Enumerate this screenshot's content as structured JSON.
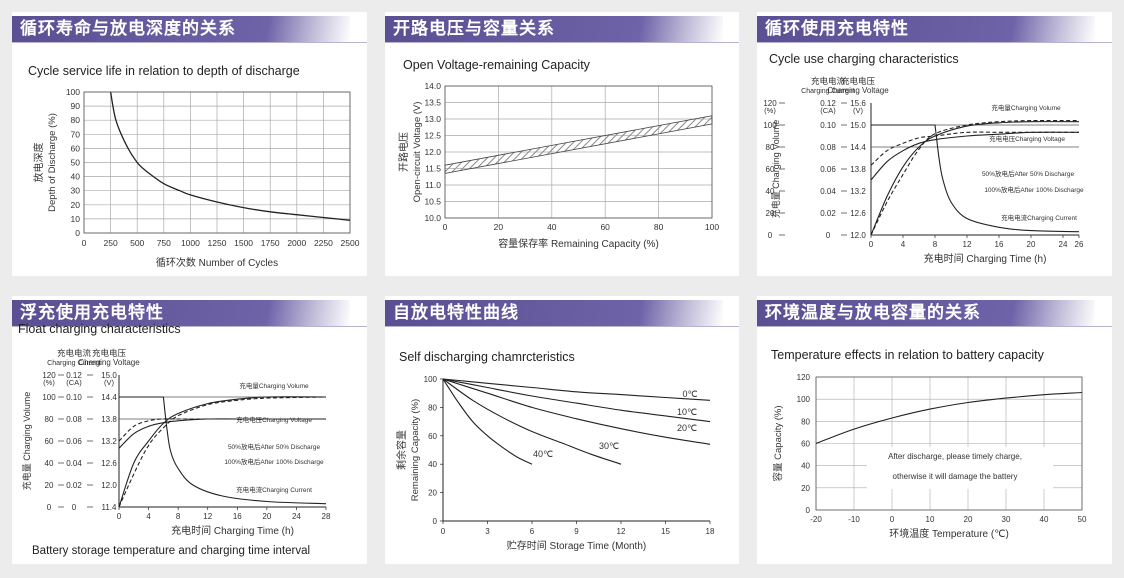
{
  "panels": [
    {
      "title": "循环寿命与放电深度的关系"
    },
    {
      "title": "开路电压与容量关系"
    },
    {
      "title": "循环使用充电特性"
    },
    {
      "title": "浮充使用充电特性"
    },
    {
      "title": "自放电特性曲线"
    },
    {
      "title": "环境温度与放电容量的关系"
    }
  ],
  "chart_data": [
    {
      "type": "line",
      "title": "Cycle service life in relation to depth of discharge",
      "ylabel_cn": "放电深度",
      "ylabel_en": "Depth of Discharge (%)",
      "xlabel": "循环次数 Number of Cycles",
      "xlim": [
        0,
        2500
      ],
      "ylim": [
        0,
        100
      ],
      "xticks": [
        "0",
        "250",
        "500",
        "750",
        "1000",
        "1250",
        "1500",
        "1750",
        "2000",
        "2250",
        "2500"
      ],
      "yticks": [
        "0",
        "10",
        "20",
        "30",
        "40",
        "50",
        "60",
        "70",
        "80",
        "90",
        "100"
      ],
      "grid": true,
      "x": [
        250,
        300,
        400,
        500,
        600,
        750,
        900,
        1000,
        1250,
        1500,
        1750,
        2000,
        2250,
        2500
      ],
      "y": [
        100,
        80,
        62,
        50,
        43,
        35,
        30,
        27,
        22,
        18,
        15,
        13,
        11,
        9
      ]
    },
    {
      "type": "area",
      "title": "Open Voltage-remaining Capacity",
      "ylabel_cn": "开路电压",
      "ylabel_en": "Open-circuit Voltage (V)",
      "xlabel": "容量保存率 Remaining Capacity (%)",
      "xlim": [
        0,
        100
      ],
      "ylim": [
        10.0,
        14.0
      ],
      "xticks": [
        "0",
        "20",
        "40",
        "60",
        "80",
        "100"
      ],
      "yticks": [
        "10.0",
        "10.5",
        "11.0",
        "11.5",
        "12.0",
        "12.5",
        "13.0",
        "13.5",
        "14.0"
      ],
      "grid": true,
      "x": [
        0,
        100
      ],
      "upper": [
        11.6,
        13.1
      ],
      "lower": [
        11.35,
        12.85
      ]
    },
    {
      "type": "line",
      "title": "Cycle use charging characteristics",
      "axis1_cn": "充电电流",
      "axis1_en": "Charging Current",
      "axis2_cn": "充电电压",
      "axis2_en": "Charging Voltage",
      "axis0_ticks": [
        "120",
        "100",
        "80",
        "60",
        "40",
        "20",
        "0"
      ],
      "axis0_unit": "(%)",
      "axis1_ticks": [
        "0.12",
        "0.10",
        "0.08",
        "0.06",
        "0.04",
        "0.02",
        "0"
      ],
      "axis1_unit": "(CA)",
      "axis2_ticks": [
        "15.6",
        "15.0",
        "14.4",
        "13.8",
        "13.2",
        "12.6",
        "12.0"
      ],
      "axis2_unit": "(V)",
      "ylabel_cn": "充电量",
      "ylabel_en": "Charging Volume",
      "xlabel": "充电时间 Charging Time (h)",
      "xticks": [
        "0",
        "4",
        "8",
        "12",
        "16",
        "20",
        "24",
        "26"
      ],
      "series": [
        {
          "name": "充电量Charging Volume",
          "style": "solid",
          "x": [
            0,
            2,
            4,
            6,
            8,
            12,
            16,
            20,
            26
          ],
          "y": [
            0,
            35,
            62,
            80,
            90,
            99,
            102,
            103,
            103
          ]
        },
        {
          "name": "充电电压Charging Voltage",
          "style": "solid",
          "x": [
            0,
            2,
            4,
            6,
            8,
            12,
            16,
            20,
            26
          ],
          "y": [
            13.5,
            14.0,
            14.3,
            14.5,
            14.6,
            14.7,
            14.75,
            14.8,
            14.8
          ]
        },
        {
          "name": "50%放电后After 50% Discharge",
          "style": "dashed",
          "x": [
            0,
            2,
            4,
            6,
            8,
            12,
            16,
            20,
            26
          ],
          "y": [
            13.9,
            14.3,
            14.5,
            14.65,
            14.7,
            14.8,
            14.8,
            14.8,
            14.8
          ]
        },
        {
          "name": "100%放电后After 100% Discharge",
          "style": "dashed",
          "x": [
            0,
            2,
            4,
            6,
            8,
            12,
            16,
            20,
            26
          ],
          "y": [
            0,
            30,
            55,
            78,
            92,
            100,
            103,
            104,
            104
          ]
        },
        {
          "name": "充电电流Charging Current",
          "style": "solid",
          "x": [
            0,
            8,
            8.5,
            9,
            10,
            12,
            16,
            20,
            26
          ],
          "y": [
            0.1,
            0.1,
            0.07,
            0.05,
            0.03,
            0.015,
            0.007,
            0.004,
            0.003
          ]
        }
      ],
      "labels": [
        "充电量Charging Volume",
        "充电电压Charging Voltage",
        "50%放电后After 50% Discharge",
        "100%放电后After 100% Discharge",
        "充电电流Charging Current"
      ]
    },
    {
      "type": "line",
      "title": "Float charging characteristics",
      "axis1_cn": "充电电流",
      "axis1_en": "Charging Current",
      "axis2_cn": "充电电压",
      "axis2_en": "Charging Voltage",
      "axis0_ticks": [
        "120",
        "100",
        "80",
        "60",
        "40",
        "20",
        "0"
      ],
      "axis0_unit": "(%)",
      "axis1_ticks": [
        "0.12",
        "0.10",
        "0.08",
        "0.06",
        "0.04",
        "0.02",
        "0"
      ],
      "axis1_unit": "(CA)",
      "axis2_ticks": [
        "15.0",
        "14.4",
        "13.8",
        "13.2",
        "12.6",
        "12.0",
        "11.4"
      ],
      "axis2_unit": "(V)",
      "ylabel_cn": "充电量",
      "ylabel_en": "Charging Volume",
      "xlabel": "充电时间 Charging Time (h)",
      "xticks": [
        "0",
        "4",
        "8",
        "12",
        "16",
        "20",
        "24",
        "28"
      ],
      "footer": "Battery storage temperature and charging time interval",
      "series": [
        {
          "name": "充电量Charging Volume",
          "style": "solid",
          "x": [
            0,
            2,
            4,
            6,
            8,
            12,
            16,
            20,
            28
          ],
          "y": [
            0,
            40,
            60,
            76,
            85,
            94,
            98,
            100,
            100
          ]
        },
        {
          "name": "充电电压Charging Voltage",
          "style": "solid",
          "x": [
            0,
            2,
            4,
            6,
            8,
            12,
            16,
            20,
            28
          ],
          "y": [
            13.0,
            13.4,
            13.6,
            13.7,
            13.75,
            13.8,
            13.8,
            13.8,
            13.8
          ]
        },
        {
          "name": "50%放电后After 50% Discharge",
          "style": "dashed",
          "x": [
            0,
            2,
            4,
            6,
            8,
            12,
            16,
            20,
            28
          ],
          "y": [
            13.2,
            13.6,
            13.75,
            13.8,
            13.8,
            13.8,
            13.8,
            13.8,
            13.8
          ]
        },
        {
          "name": "100%放电后After 100% Discharge",
          "style": "dashed",
          "x": [
            0,
            2,
            4,
            6,
            8,
            12,
            16,
            20,
            28
          ],
          "y": [
            0,
            30,
            56,
            72,
            83,
            93,
            97,
            99,
            100
          ]
        },
        {
          "name": "充电电流Charging Current",
          "style": "solid",
          "x": [
            0,
            6,
            6.5,
            7,
            8,
            10,
            14,
            20,
            28
          ],
          "y": [
            0.1,
            0.1,
            0.07,
            0.05,
            0.035,
            0.02,
            0.01,
            0.005,
            0.003
          ]
        }
      ],
      "labels": [
        "充电量Charging Volume",
        "充电电压Charging Voltage",
        "50%放电后After 50% Discharge",
        "100%放电后After 100% Discharge",
        "充电电流Charging Current"
      ]
    },
    {
      "type": "line",
      "title": "Self discharging chamrcteristics",
      "ylabel_cn": "剩余容量",
      "ylabel_en": "Remaining Capacity (%)",
      "xlabel": "贮存时间 Storage Time (Month)",
      "xlim": [
        0,
        18
      ],
      "ylim": [
        0,
        100
      ],
      "xticks": [
        "0",
        "3",
        "6",
        "9",
        "12",
        "15",
        "18"
      ],
      "yticks": [
        "0",
        "20",
        "40",
        "60",
        "80",
        "100"
      ],
      "series": [
        {
          "name": "0℃",
          "x": [
            0,
            3,
            6,
            9,
            12,
            15,
            18
          ],
          "y": [
            100,
            97,
            94,
            91,
            89,
            87,
            85
          ]
        },
        {
          "name": "10℃",
          "x": [
            0,
            3,
            6,
            9,
            12,
            15,
            18
          ],
          "y": [
            100,
            94,
            88,
            83,
            78,
            74,
            70
          ]
        },
        {
          "name": "20℃",
          "x": [
            0,
            3,
            6,
            9,
            12,
            15,
            18
          ],
          "y": [
            100,
            90,
            80,
            72,
            65,
            59,
            54
          ]
        },
        {
          "name": "30℃",
          "x": [
            0,
            2,
            4,
            6,
            8,
            10,
            12
          ],
          "y": [
            100,
            85,
            73,
            63,
            55,
            47,
            40
          ]
        },
        {
          "name": "40℃",
          "x": [
            0,
            1,
            2,
            3,
            4,
            5,
            6
          ],
          "y": [
            100,
            84,
            70,
            60,
            52,
            45,
            40
          ]
        }
      ]
    },
    {
      "type": "line",
      "title": "Temperature effects in relation to battery capacity",
      "ylabel_cn": "容量",
      "ylabel_en": "Capacity (%)",
      "xlabel": "环境温度 Temperature (℃)",
      "xlim": [
        -20,
        50
      ],
      "ylim": [
        0,
        120
      ],
      "xticks": [
        "-20",
        "-10",
        "0",
        "10",
        "20",
        "30",
        "40",
        "50"
      ],
      "yticks": [
        "0",
        "20",
        "40",
        "60",
        "80",
        "100",
        "120"
      ],
      "note1": "After discharge, please timely charge,",
      "note2": "otherwise it will damage the battery",
      "x": [
        -20,
        -10,
        0,
        10,
        20,
        30,
        40,
        50
      ],
      "y": [
        60,
        73,
        83,
        91,
        97,
        101,
        104,
        106
      ]
    }
  ]
}
